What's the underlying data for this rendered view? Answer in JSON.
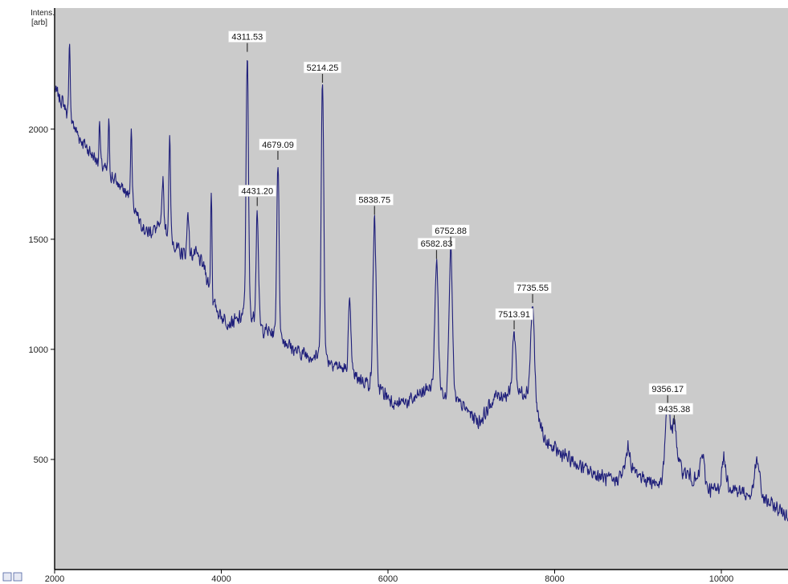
{
  "colors": {
    "plot_background": "#cbcbcb",
    "spectrum_line": "#1f1f7a",
    "axis": "#000000",
    "label_background": "#ffffff"
  },
  "chart_data": {
    "type": "line",
    "title": "",
    "ylabel_lines": [
      "Intens.",
      "[arb]"
    ],
    "xlabel": "",
    "xlim": [
      2000,
      10800
    ],
    "ylim": [
      0,
      2550
    ],
    "grid": false,
    "legend": "none",
    "x_ticks": [
      2000,
      4000,
      6000,
      8000,
      10000
    ],
    "y_ticks": [
      500,
      1000,
      1500,
      2000
    ],
    "baseline": [
      [
        2000,
        2180
      ],
      [
        2100,
        2120
      ],
      [
        2300,
        1960
      ],
      [
        2500,
        1860
      ],
      [
        2700,
        1780
      ],
      [
        2900,
        1690
      ],
      [
        3100,
        1530
      ],
      [
        3300,
        1560
      ],
      [
        3500,
        1440
      ],
      [
        3700,
        1430
      ],
      [
        3800,
        1370
      ],
      [
        3900,
        1210
      ],
      [
        4000,
        1150
      ],
      [
        4100,
        1120
      ],
      [
        4200,
        1130
      ],
      [
        4300,
        1180
      ],
      [
        4500,
        1090
      ],
      [
        4700,
        1060
      ],
      [
        4900,
        990
      ],
      [
        5100,
        970
      ],
      [
        5300,
        950
      ],
      [
        5500,
        900
      ],
      [
        5700,
        860
      ],
      [
        5900,
        820
      ],
      [
        6100,
        750
      ],
      [
        6300,
        770
      ],
      [
        6500,
        830
      ],
      [
        6700,
        800
      ],
      [
        6900,
        740
      ],
      [
        7100,
        670
      ],
      [
        7300,
        790
      ],
      [
        7500,
        800
      ],
      [
        7700,
        810
      ],
      [
        7900,
        570
      ],
      [
        8100,
        520
      ],
      [
        8300,
        470
      ],
      [
        8500,
        430
      ],
      [
        8700,
        400
      ],
      [
        8900,
        460
      ],
      [
        9100,
        410
      ],
      [
        9300,
        380
      ],
      [
        9500,
        460
      ],
      [
        9700,
        400
      ],
      [
        9900,
        360
      ],
      [
        10100,
        380
      ],
      [
        10300,
        340
      ],
      [
        10500,
        320
      ],
      [
        10700,
        270
      ],
      [
        10800,
        250
      ]
    ],
    "peaks": [
      {
        "x": 2180,
        "y": 2400,
        "w": 8
      },
      {
        "x": 2540,
        "y": 2030,
        "w": 8
      },
      {
        "x": 2650,
        "y": 2020,
        "w": 8
      },
      {
        "x": 2920,
        "y": 1980,
        "w": 10
      },
      {
        "x": 3300,
        "y": 1790,
        "w": 10
      },
      {
        "x": 3380,
        "y": 1960,
        "w": 10
      },
      {
        "x": 3600,
        "y": 1640,
        "w": 10
      },
      {
        "x": 3880,
        "y": 1730,
        "w": 8
      },
      {
        "x": 4311.53,
        "y": 2340,
        "w": 14,
        "label": "4311.53"
      },
      {
        "x": 4431.2,
        "y": 1640,
        "w": 14,
        "label": "4431.20"
      },
      {
        "x": 4679.09,
        "y": 1850,
        "w": 14,
        "label": "4679.09"
      },
      {
        "x": 5214.25,
        "y": 2200,
        "w": 16,
        "label": "5214.25"
      },
      {
        "x": 5540,
        "y": 1200,
        "w": 16
      },
      {
        "x": 5838.75,
        "y": 1600,
        "w": 18,
        "label": "5838.75"
      },
      {
        "x": 6582.83,
        "y": 1400,
        "w": 20,
        "label": "6582.83"
      },
      {
        "x": 6752.88,
        "y": 1460,
        "w": 20,
        "label": "6752.88"
      },
      {
        "x": 7513.91,
        "y": 1080,
        "w": 20,
        "label": "7513.91"
      },
      {
        "x": 7735.55,
        "y": 1200,
        "w": 22,
        "label": "7735.55"
      },
      {
        "x": 8880,
        "y": 550,
        "w": 24
      },
      {
        "x": 9356.17,
        "y": 740,
        "w": 30,
        "label": "9356.17"
      },
      {
        "x": 9435.38,
        "y": 650,
        "w": 30,
        "label": "9435.38"
      },
      {
        "x": 9770,
        "y": 520,
        "w": 25
      },
      {
        "x": 10030,
        "y": 500,
        "w": 25
      },
      {
        "x": 10430,
        "y": 490,
        "w": 30
      }
    ]
  }
}
